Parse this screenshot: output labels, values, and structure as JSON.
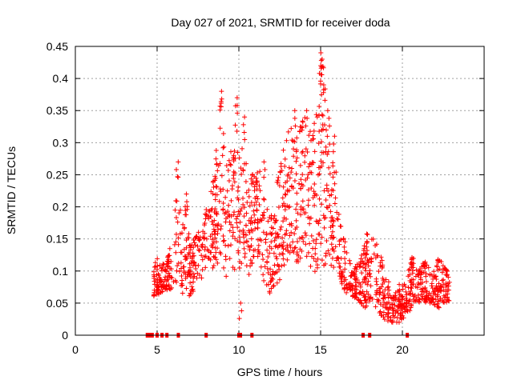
{
  "chart_data": {
    "type": "scatter",
    "title": "Day 027 of 2021, SRMTID for receiver doda",
    "xlabel": "GPS time / hours",
    "ylabel": "SRMTID / TECUs",
    "xlim": [
      0,
      25
    ],
    "ylim": [
      0,
      0.45
    ],
    "xticks": [
      0,
      5,
      10,
      15,
      20
    ],
    "xtick_labels": [
      "0",
      "5",
      "10",
      "15",
      "20"
    ],
    "yticks": [
      0,
      0.05,
      0.1,
      0.15,
      0.2,
      0.25,
      0.3,
      0.35,
      0.4,
      0.45
    ],
    "ytick_labels": [
      "0",
      "0.05",
      "0.1",
      "0.15",
      "0.2",
      "0.25",
      "0.3",
      "0.35",
      "0.4",
      "0.45"
    ],
    "grid": true,
    "marker": "+",
    "color": "#ff0000",
    "zero_markers_x": [
      4.4,
      4.5,
      4.6,
      4.7,
      5.0,
      5.3,
      5.6,
      6.3,
      8.0,
      10.0,
      10.1,
      10.8,
      17.6,
      18.0,
      20.3
    ],
    "envelope": {
      "x": [
        4.8,
        5.0,
        5.5,
        6.0,
        6.3,
        6.5,
        6.8,
        7.0,
        7.5,
        8.0,
        8.5,
        8.9,
        9.2,
        9.5,
        9.8,
        10.0,
        10.3,
        10.6,
        11.0,
        11.3,
        11.6,
        12.0,
        12.4,
        12.8,
        13.2,
        13.6,
        14.0,
        14.3,
        14.6,
        15.0,
        15.2,
        15.4,
        15.6,
        15.9,
        16.3,
        16.6,
        17.0,
        17.4,
        17.8,
        18.2,
        18.6,
        19.0,
        19.4,
        19.8,
        20.2,
        20.6,
        21.0,
        21.4,
        21.8,
        22.2,
        22.6,
        22.9
      ],
      "low": [
        0.06,
        0.06,
        0.07,
        0.07,
        0.09,
        0.06,
        0.07,
        0.06,
        0.08,
        0.1,
        0.1,
        0.12,
        0.09,
        0.11,
        0.1,
        0.1,
        0.12,
        0.09,
        0.13,
        0.1,
        0.07,
        0.06,
        0.07,
        0.1,
        0.12,
        0.11,
        0.13,
        0.1,
        0.09,
        0.11,
        0.1,
        0.12,
        0.11,
        0.1,
        0.08,
        0.06,
        0.06,
        0.05,
        0.04,
        0.05,
        0.03,
        0.02,
        0.02,
        0.02,
        0.03,
        0.04,
        0.05,
        0.05,
        0.05,
        0.04,
        0.05,
        0.05
      ],
      "high": [
        0.11,
        0.12,
        0.11,
        0.16,
        0.27,
        0.16,
        0.22,
        0.14,
        0.16,
        0.2,
        0.25,
        0.38,
        0.26,
        0.29,
        0.37,
        0.3,
        0.34,
        0.24,
        0.26,
        0.27,
        0.2,
        0.19,
        0.25,
        0.31,
        0.34,
        0.33,
        0.35,
        0.32,
        0.31,
        0.43,
        0.44,
        0.35,
        0.31,
        0.28,
        0.16,
        0.14,
        0.1,
        0.12,
        0.16,
        0.16,
        0.13,
        0.1,
        0.06,
        0.08,
        0.08,
        0.13,
        0.1,
        0.12,
        0.1,
        0.12,
        0.12,
        0.08
      ]
    },
    "peaks": [
      {
        "x": 6.25,
        "y": 0.27
      },
      {
        "x": 6.8,
        "y": 0.22
      },
      {
        "x": 8.9,
        "y": 0.38
      },
      {
        "x": 9.9,
        "y": 0.37
      },
      {
        "x": 10.3,
        "y": 0.34
      },
      {
        "x": 11.6,
        "y": 0.27
      },
      {
        "x": 13.4,
        "y": 0.35
      },
      {
        "x": 14.1,
        "y": 0.35
      },
      {
        "x": 14.6,
        "y": 0.33
      },
      {
        "x": 15.05,
        "y": 0.44
      },
      {
        "x": 15.1,
        "y": 0.43
      },
      {
        "x": 15.0,
        "y": 0.42
      },
      {
        "x": 15.2,
        "y": 0.39
      },
      {
        "x": 15.5,
        "y": 0.35
      },
      {
        "x": 15.8,
        "y": 0.31
      },
      {
        "x": 10.1,
        "y": 0.05
      }
    ]
  }
}
